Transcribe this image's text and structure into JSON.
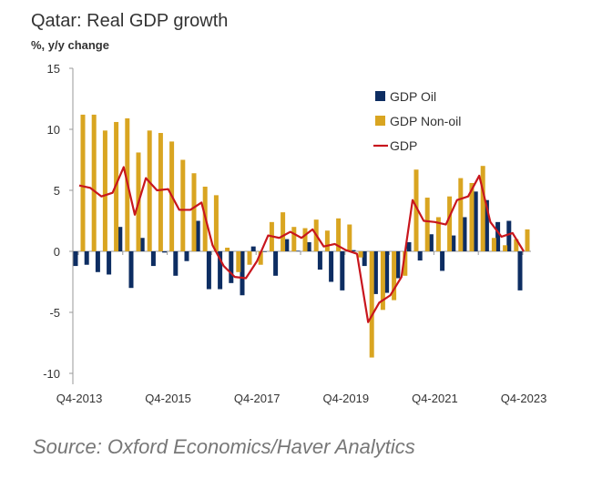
{
  "chart_data": {
    "type": "bar",
    "title": "Qatar: Real GDP growth",
    "ylabel": "%, y/y change",
    "ylim": [
      -10,
      15
    ],
    "yticks": [
      15,
      10,
      5,
      0,
      -5,
      -10
    ],
    "x_tick_labels": [
      "Q4-2013",
      "Q4-2015",
      "Q4-2017",
      "Q4-2019",
      "Q4-2021",
      "Q4-2023"
    ],
    "x_start": "Q4-2013",
    "x_end": "Q4-2023",
    "legend_position": "top-right",
    "series": [
      {
        "name": "GDP Oil",
        "type": "bar",
        "color": "#0d2d62",
        "values": [
          -1.2,
          -1.1,
          -1.7,
          -1.9,
          2.0,
          -3.0,
          1.1,
          -1.2,
          -0.1,
          -2.0,
          -0.8,
          2.5,
          -3.1,
          -3.1,
          -2.6,
          -3.6,
          0.4,
          -0.05,
          -2.0,
          1.0,
          0.05,
          0.75,
          -1.5,
          -2.5,
          -3.2,
          0.1,
          -1.2,
          -3.5,
          -3.4,
          -2.2,
          0.75,
          -0.75,
          1.4,
          -1.6,
          1.3,
          2.8,
          4.9,
          4.2,
          2.4,
          2.5,
          -3.2
        ]
      },
      {
        "name": "GDP Non-oil",
        "type": "bar",
        "color": "#d9a521",
        "values": [
          11.2,
          11.2,
          9.9,
          10.6,
          10.9,
          8.1,
          9.9,
          9.7,
          9.0,
          7.5,
          6.4,
          5.3,
          4.6,
          0.3,
          -1.7,
          -1.1,
          -1.1,
          2.4,
          3.2,
          2.0,
          1.9,
          2.6,
          1.7,
          2.7,
          2.2,
          -0.5,
          -8.7,
          -4.8,
          -4.0,
          -2.0,
          6.7,
          4.4,
          2.8,
          4.5,
          6.0,
          5.6,
          7.0,
          1.1,
          0.5,
          1.0,
          1.8
        ]
      },
      {
        "name": "GDP",
        "type": "line",
        "color": "#c8161d",
        "values": [
          5.4,
          5.2,
          4.5,
          4.8,
          6.9,
          3.0,
          6.0,
          5.0,
          5.1,
          3.4,
          3.4,
          4.0,
          0.5,
          -1.2,
          -2.1,
          -2.2,
          -0.8,
          1.3,
          1.1,
          1.6,
          1.1,
          1.8,
          0.4,
          0.6,
          0.1,
          -0.2,
          -5.8,
          -4.2,
          -3.6,
          -2.1,
          4.2,
          2.5,
          2.4,
          2.2,
          4.2,
          4.5,
          6.2,
          2.4,
          1.2,
          1.5,
          0.0
        ]
      }
    ]
  },
  "source": "Source: Oxford Economics/Haver Analytics"
}
